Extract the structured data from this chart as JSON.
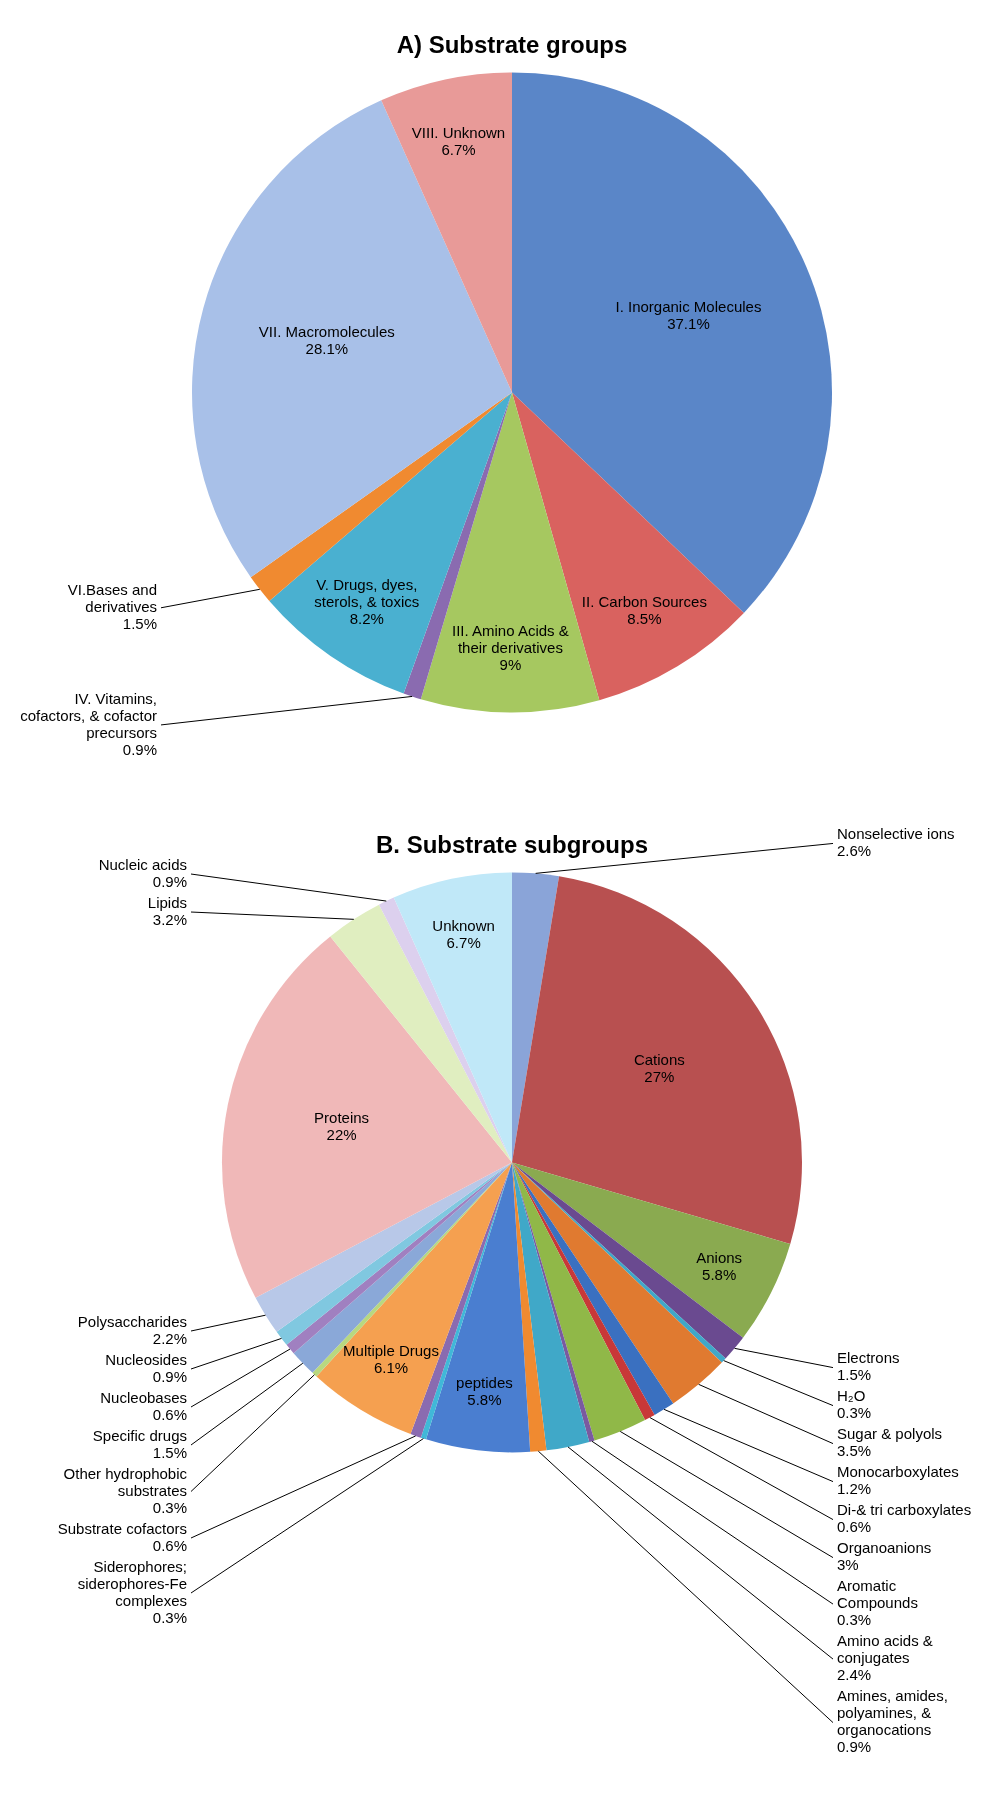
{
  "chart_data": [
    {
      "type": "pie",
      "title": "A) Substrate groups",
      "legend": false,
      "categories": [
        "I. Inorganic Molecules",
        "II. Carbon Sources",
        "III. Amino Acids & their derivatives",
        "IV. Vitamins, cofactors, & cofactor precursors",
        "V. Drugs, dyes, sterols, & toxics",
        "VI.Bases and derivatives",
        "VII. Macromolecules",
        "VIII. Unknown"
      ],
      "values": [
        37.1,
        8.5,
        9,
        0.9,
        8.2,
        1.5,
        28.1,
        6.7
      ],
      "value_labels": [
        "37.1%",
        "8.5%",
        "9%",
        "0.9%",
        "8.2%",
        "1.5%",
        "28.1%",
        "6.7%"
      ],
      "colors": [
        "#5a86c8",
        "#d9625f",
        "#a6c860",
        "#8a6bb0",
        "#4ab0d0",
        "#f08a30",
        "#a8c0e8",
        "#e89a98"
      ]
    },
    {
      "type": "pie",
      "title": "B. Substrate subgroups",
      "legend": false,
      "categories": [
        "Nonselective ions",
        "Cations",
        "Anions",
        "Electrons",
        "H₂O",
        "Sugar & polyols",
        "Monocarboxylates",
        "Di-& tri carboxylates",
        "Organoanions",
        "Aromatic Compounds",
        "Amino acids & conjugates",
        "Amines, amides, polyamines, & organocations",
        "peptides",
        "Siderophores; siderophores-Fe complexes",
        "Substrate cofactors",
        "Multiple Drugs",
        "Other hydrophobic substrates",
        "Specific drugs",
        "Nucleobases",
        "Nucleosides",
        "Polysaccharides",
        "Proteins",
        "Lipids",
        "Nucleic acids",
        "Unknown"
      ],
      "values": [
        2.6,
        27,
        5.8,
        1.5,
        0.3,
        3.5,
        1.2,
        0.6,
        3,
        0.3,
        2.4,
        0.9,
        5.8,
        0.3,
        0.6,
        6.1,
        0.3,
        1.5,
        0.6,
        0.9,
        2.2,
        22,
        3.2,
        0.9,
        6.7
      ],
      "value_labels": [
        "2.6%",
        "27%",
        "5.8%",
        "1.5%",
        "0.3%",
        "3.5%",
        "1.2%",
        "0.6%",
        "3%",
        "0.3%",
        "2.4%",
        "0.9%",
        "5.8%",
        "0.3%",
        "0.6%",
        "6.1%",
        "0.3%",
        "1.5%",
        "0.6%",
        "0.9%",
        "2.2%",
        "22%",
        "3.2%",
        "0.9%",
        "6.7%"
      ],
      "colors": [
        "#8aa4d8",
        "#b85050",
        "#8aaa50",
        "#6a4a90",
        "#40a8c8",
        "#e07a30",
        "#3a70c0",
        "#c83838",
        "#90b848",
        "#7a5aa0",
        "#40a8c8",
        "#f08a30",
        "#4a7ed0",
        "#40b8d8",
        "#8a6bb0",
        "#f5a050",
        "#b8d880",
        "#8aa8d8",
        "#a080c0",
        "#80c8e0",
        "#b8c8e8",
        "#f0b8b8",
        "#e0eec0",
        "#dcd0ee",
        "#c0e8f8"
      ]
    }
  ]
}
